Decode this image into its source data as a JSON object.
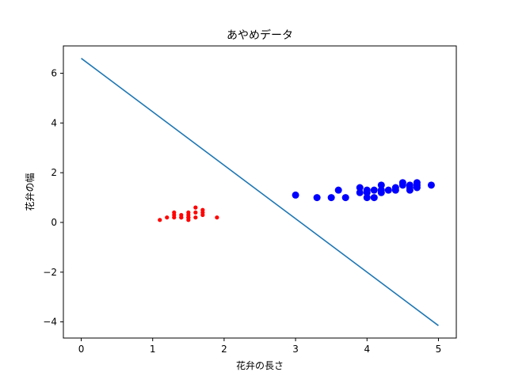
{
  "chart_data": {
    "type": "scatter",
    "title": "あやめデータ",
    "xlabel": "花弁の長さ",
    "ylabel": "花弁の幅",
    "xlim": [
      -0.25,
      5.25
    ],
    "ylim": [
      -4.65,
      7.1
    ],
    "xticks": [
      0,
      1,
      2,
      3,
      4,
      5
    ],
    "yticks": [
      -4,
      -2,
      0,
      2,
      4,
      6
    ],
    "xtick_labels": [
      "0",
      "1",
      "2",
      "3",
      "4",
      "5"
    ],
    "ytick_labels": [
      "−4",
      "−2",
      "0",
      "2",
      "4",
      "6"
    ],
    "grid": false,
    "series": [
      {
        "kind": "scatter",
        "color": "#ff0000",
        "marker_size": "small",
        "points": [
          [
            1.1,
            0.1
          ],
          [
            1.2,
            0.2
          ],
          [
            1.3,
            0.2
          ],
          [
            1.3,
            0.4
          ],
          [
            1.3,
            0.3
          ],
          [
            1.4,
            0.2
          ],
          [
            1.4,
            0.3
          ],
          [
            1.4,
            0.2
          ],
          [
            1.5,
            0.1
          ],
          [
            1.5,
            0.2
          ],
          [
            1.5,
            0.4
          ],
          [
            1.5,
            0.3
          ],
          [
            1.5,
            0.2
          ],
          [
            1.6,
            0.6
          ],
          [
            1.6,
            0.2
          ],
          [
            1.6,
            0.4
          ],
          [
            1.7,
            0.5
          ],
          [
            1.7,
            0.3
          ],
          [
            1.7,
            0.4
          ],
          [
            1.9,
            0.2
          ]
        ]
      },
      {
        "kind": "scatter",
        "color": "#0000ff",
        "marker_size": "large",
        "points": [
          [
            3.0,
            1.1
          ],
          [
            3.3,
            1.0
          ],
          [
            3.5,
            1.0
          ],
          [
            3.6,
            1.3
          ],
          [
            3.7,
            1.0
          ],
          [
            3.9,
            1.4
          ],
          [
            3.9,
            1.2
          ],
          [
            4.0,
            1.0
          ],
          [
            4.0,
            1.3
          ],
          [
            4.0,
            1.2
          ],
          [
            4.1,
            1.0
          ],
          [
            4.1,
            1.3
          ],
          [
            4.2,
            1.5
          ],
          [
            4.2,
            1.3
          ],
          [
            4.2,
            1.2
          ],
          [
            4.3,
            1.3
          ],
          [
            4.4,
            1.4
          ],
          [
            4.4,
            1.3
          ],
          [
            4.5,
            1.5
          ],
          [
            4.5,
            1.6
          ],
          [
            4.6,
            1.5
          ],
          [
            4.6,
            1.3
          ],
          [
            4.6,
            1.4
          ],
          [
            4.7,
            1.4
          ],
          [
            4.7,
            1.6
          ],
          [
            4.7,
            1.5
          ],
          [
            4.9,
            1.5
          ]
        ]
      },
      {
        "kind": "line",
        "color": "#1f77b4",
        "points": [
          [
            0,
            6.6
          ],
          [
            5,
            -4.15
          ]
        ]
      }
    ]
  }
}
